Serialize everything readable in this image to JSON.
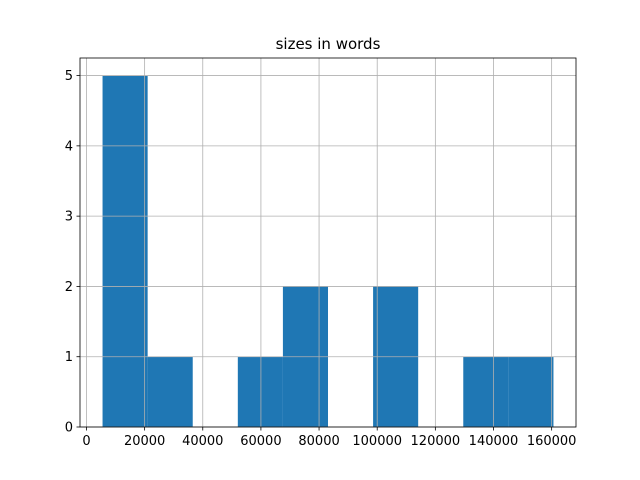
{
  "chart_data": {
    "type": "histogram",
    "title": "sizes in words",
    "bins": [
      5527,
      21037,
      36546,
      52056,
      67565,
      83075,
      98585,
      114094,
      129604,
      145113,
      160622
    ],
    "values": [
      5,
      1,
      0,
      1,
      2,
      0,
      2,
      0,
      1,
      1
    ],
    "color": "#1f77b4",
    "xlim": [
      -2228,
      168377
    ],
    "xticks": [
      0,
      20000,
      40000,
      60000,
      80000,
      100000,
      120000,
      140000,
      160000
    ],
    "ylim": [
      0,
      5.25
    ],
    "yticks": [
      0,
      1,
      2,
      3,
      4,
      5
    ],
    "grid": true
  }
}
